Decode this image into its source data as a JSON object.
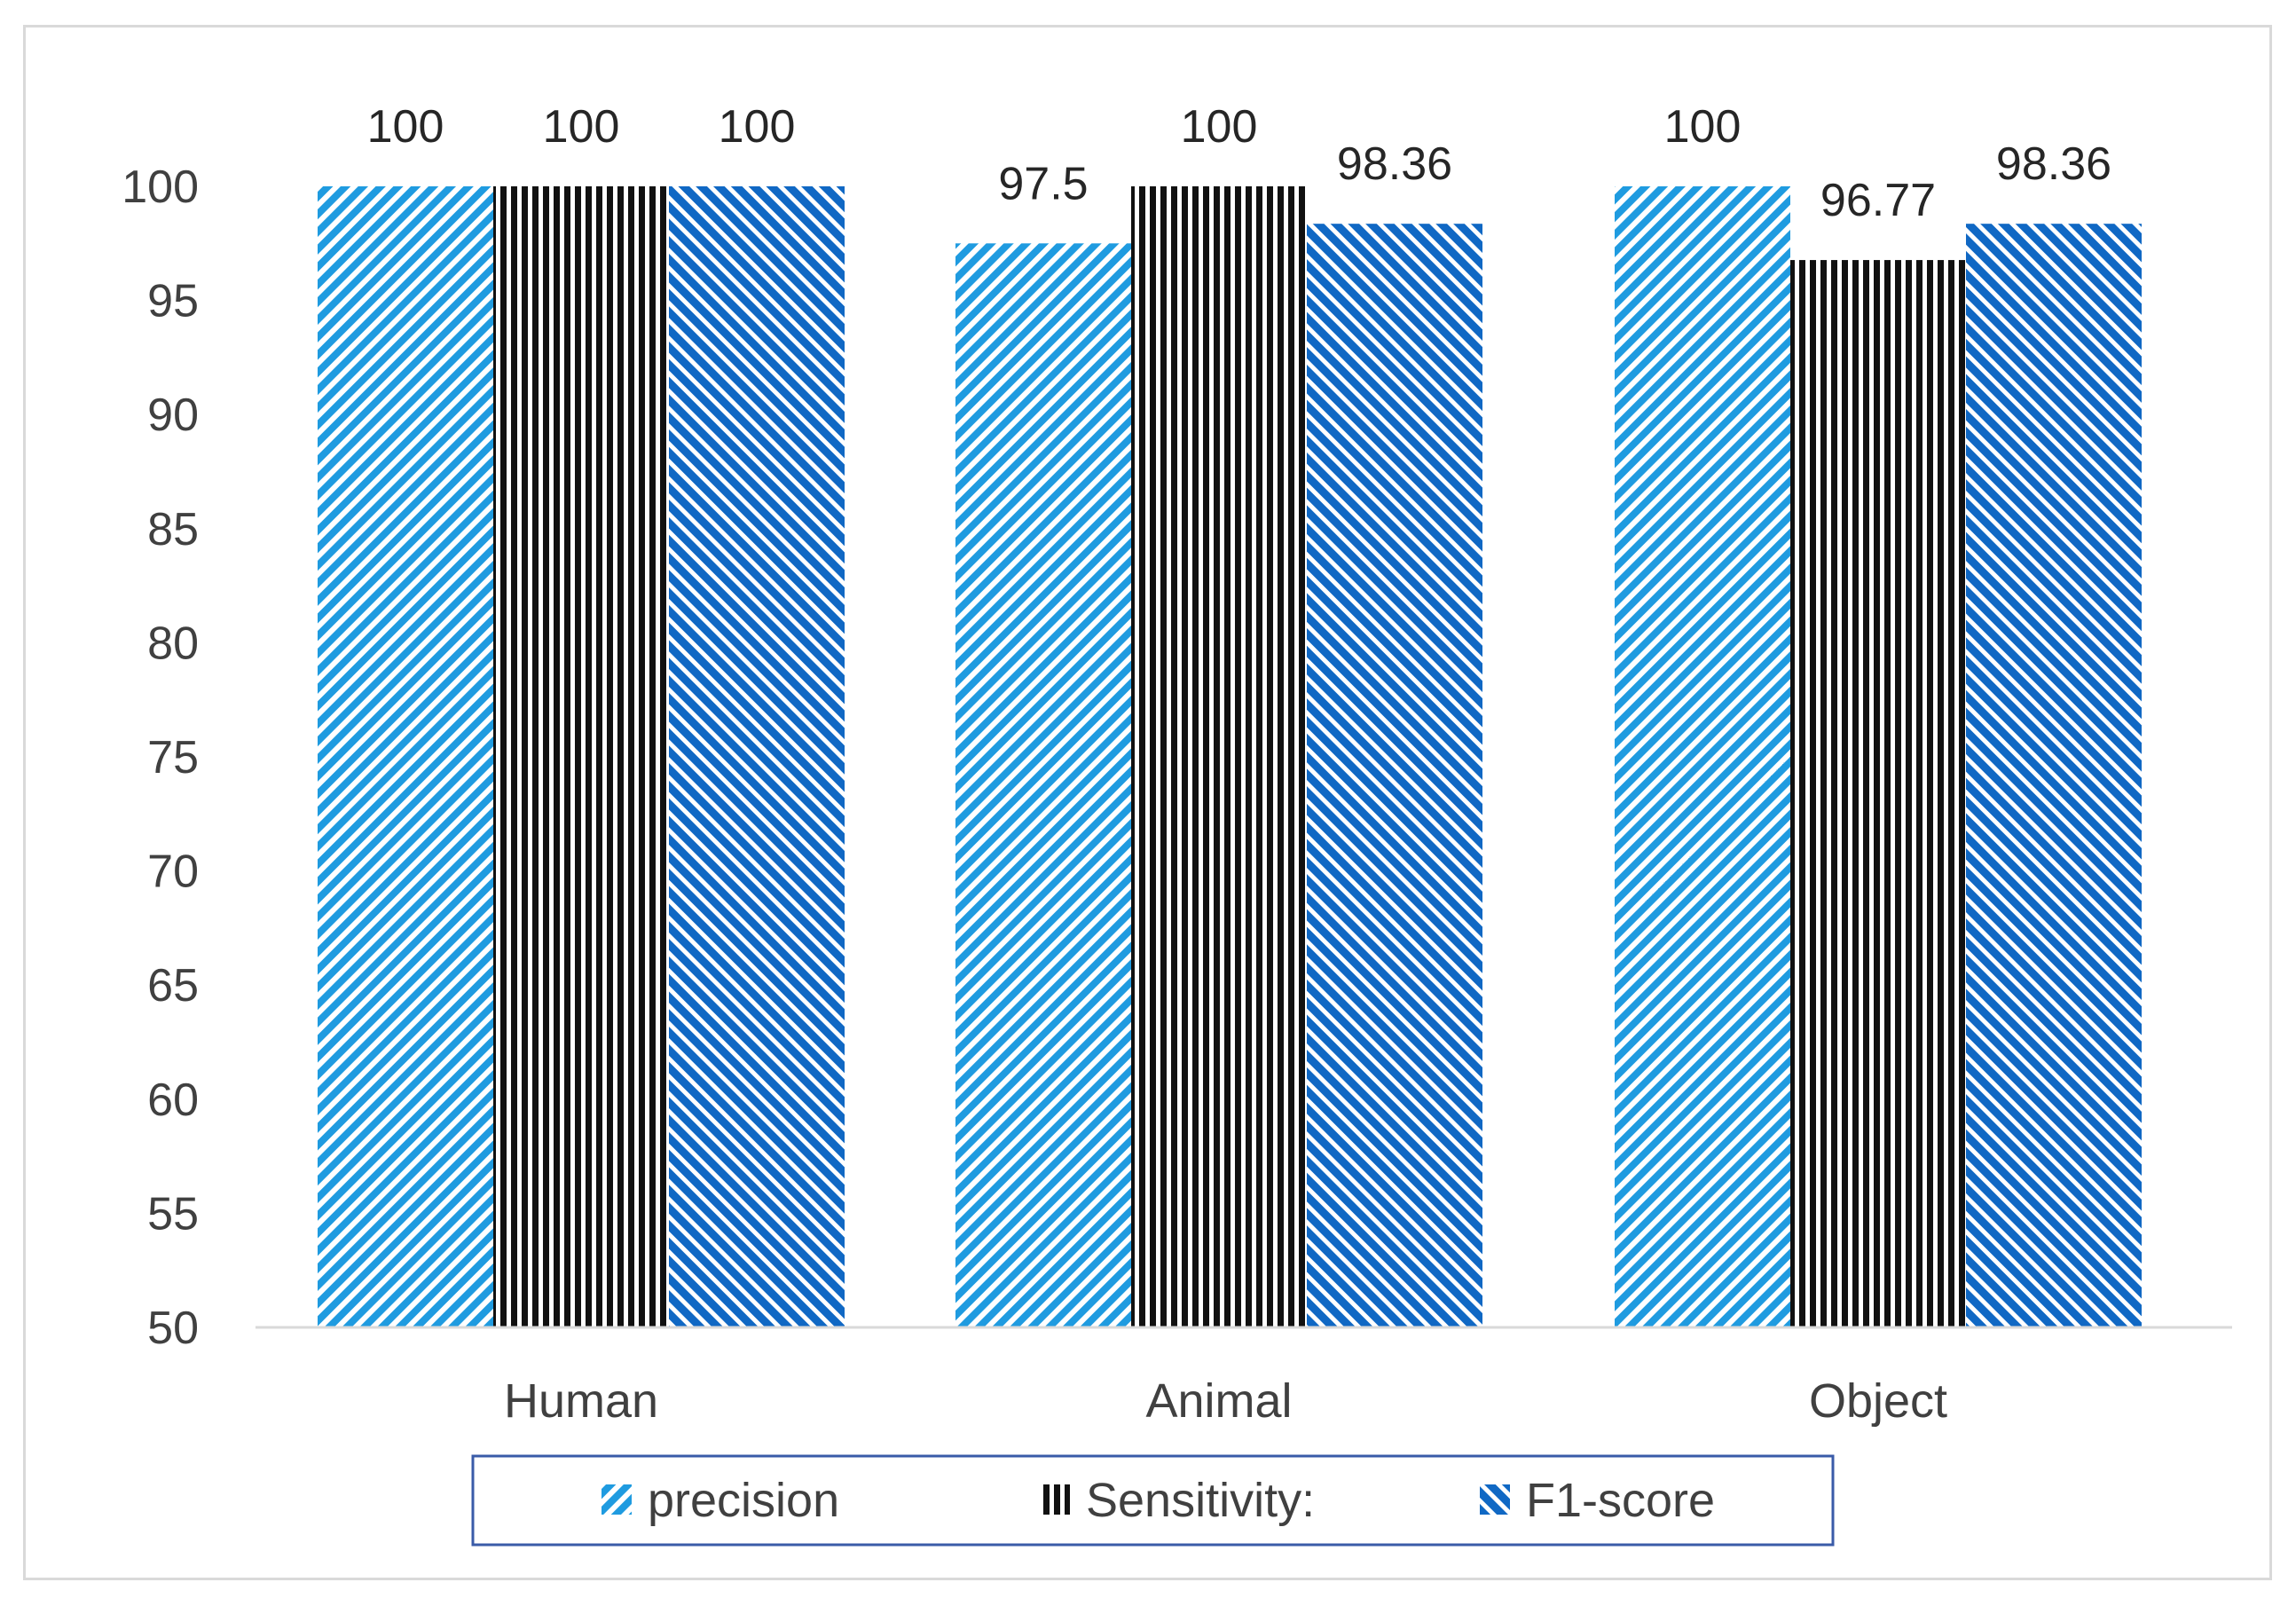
{
  "chart_data": {
    "type": "bar",
    "title": "",
    "xlabel": "",
    "ylabel": "",
    "categories": [
      "Human",
      "Animal",
      "Object"
    ],
    "series": [
      {
        "name": "precision",
        "values": [
          100,
          97.5,
          100
        ],
        "labels": [
          "100",
          "97.5",
          "100"
        ],
        "color": "#1f9be0",
        "pattern": "diagonal-up"
      },
      {
        "name": "Sensitivity:",
        "values": [
          100,
          100,
          96.77
        ],
        "labels": [
          "100",
          "100",
          "96.77"
        ],
        "color": "#111111",
        "pattern": "vertical"
      },
      {
        "name": "F1-score",
        "values": [
          100,
          98.36,
          98.36
        ],
        "labels": [
          "100",
          "98.36",
          "98.36"
        ],
        "color": "#1068c4",
        "pattern": "diagonal-down"
      }
    ],
    "ylim": [
      50,
      100
    ],
    "yticks": [
      50,
      55,
      60,
      65,
      70,
      75,
      80,
      85,
      90,
      95,
      100
    ],
    "grid": false,
    "legend": {
      "position": "bottom",
      "entries": [
        "precision",
        "Sensitivity:",
        "F1-score"
      ]
    },
    "colors": {
      "legend_border": "#3a5ba8",
      "axis": "#d9d9d9"
    }
  }
}
